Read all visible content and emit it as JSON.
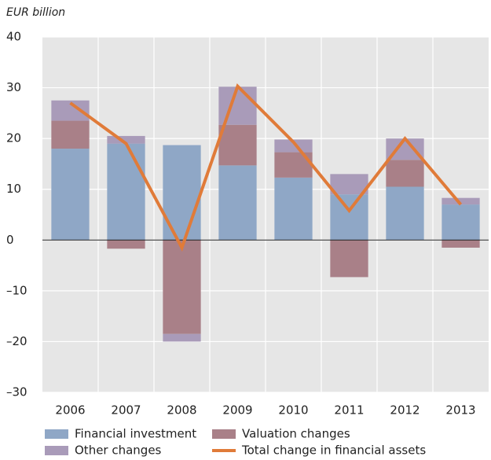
{
  "chart_data": {
    "type": "bar",
    "stacked": true,
    "y_label": "EUR billion",
    "categories": [
      "2006",
      "2007",
      "2008",
      "2009",
      "2010",
      "2011",
      "2012",
      "2013"
    ],
    "series": [
      {
        "name": "Financial investment",
        "color": "#8fa7c6",
        "values": [
          18,
          19,
          18.7,
          14.7,
          12.3,
          9,
          10.5,
          7
        ]
      },
      {
        "name": "Valuation changes",
        "color": "#a98088",
        "values": [
          5.5,
          -1.7,
          -18.5,
          8,
          5,
          -7.3,
          5.3,
          -1.5
        ]
      },
      {
        "name": "Other changes",
        "color": "#a99bb9",
        "values": [
          4,
          1.5,
          -1.5,
          7.5,
          2.5,
          4,
          4.2,
          1.3
        ]
      },
      {
        "name": "Total change in financial assets",
        "color": "#e07b39",
        "type": "line",
        "values": [
          27,
          19,
          -1.5,
          30.3,
          19.3,
          5.8,
          20,
          7
        ]
      }
    ],
    "ylim": [
      -30,
      40
    ],
    "yticks": [
      {
        "value": -30,
        "label": "–30"
      },
      {
        "value": -20,
        "label": "–20"
      },
      {
        "value": -10,
        "label": "–10"
      },
      0,
      10,
      20,
      30,
      40
    ],
    "grid": true,
    "legend": "bottom"
  }
}
